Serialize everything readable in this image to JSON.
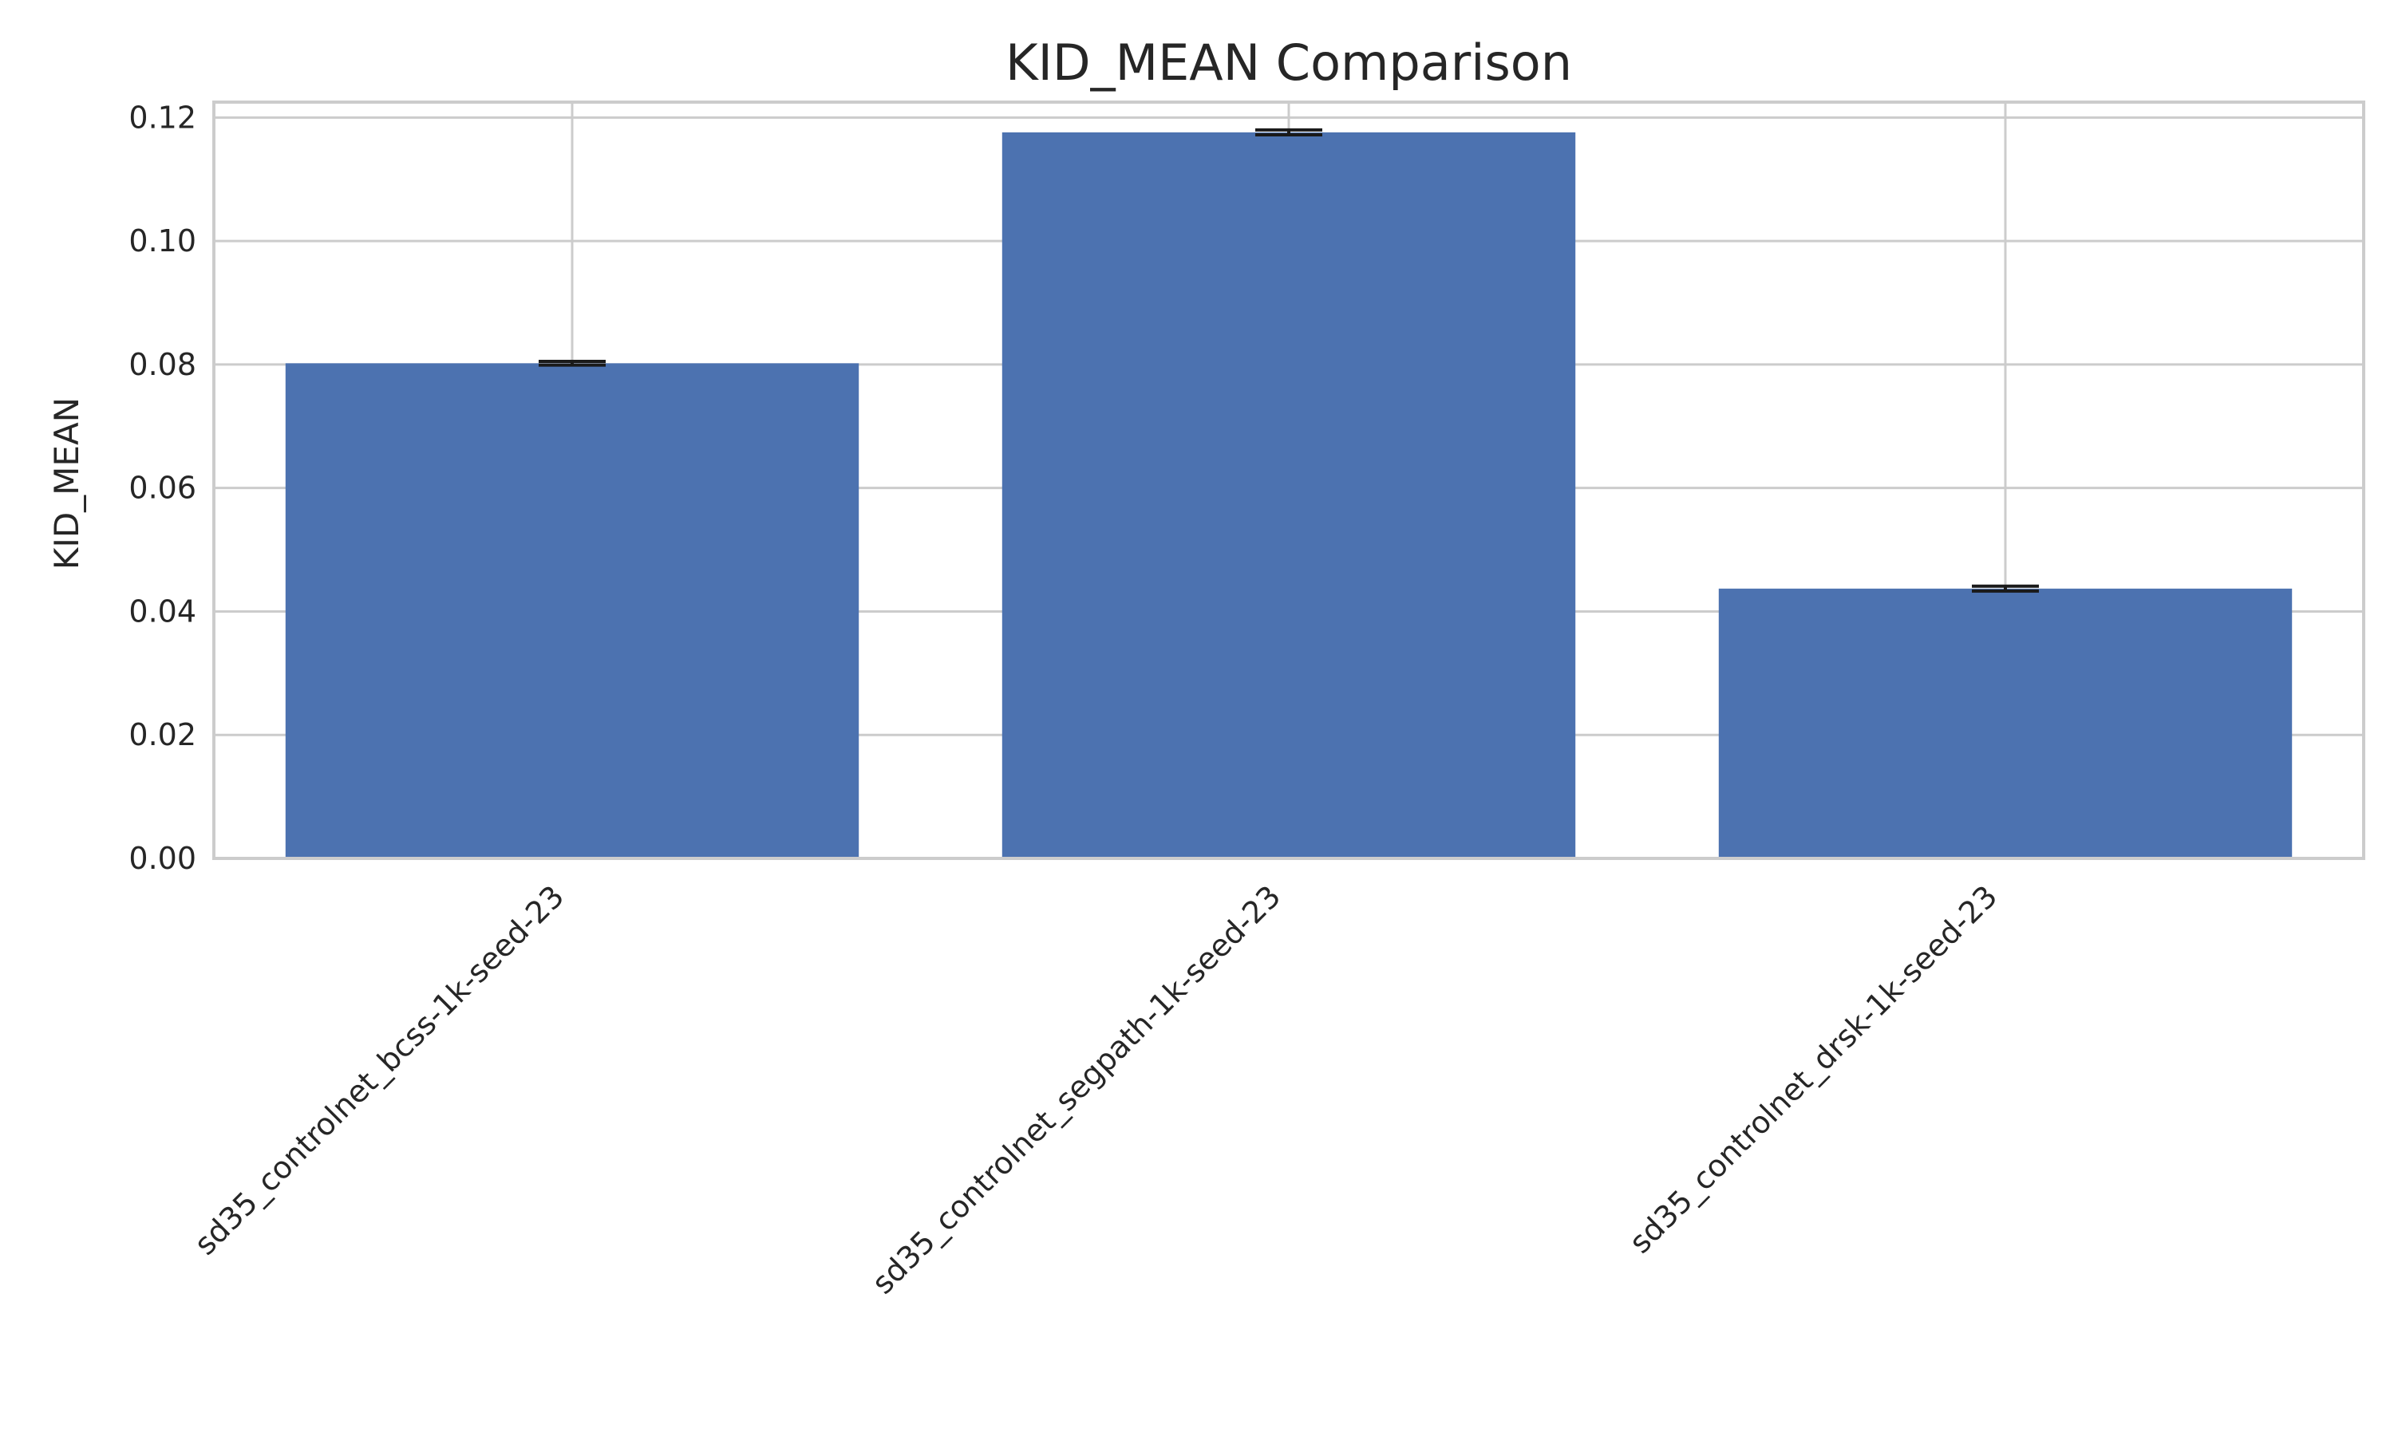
{
  "chart_data": {
    "type": "bar",
    "title": "KID_MEAN Comparison",
    "xlabel": "",
    "ylabel": "KID_MEAN",
    "categories": [
      "sd35_controlnet_bcss-1k-seed-23",
      "sd35_controlnet_segpath-1k-seed-23",
      "sd35_controlnet_drsk-1k-seed-23"
    ],
    "values": [
      0.0802,
      0.1176,
      0.0437
    ],
    "errors": [
      0.0003,
      0.0004,
      0.0004
    ],
    "ylim": [
      0,
      0.1225
    ],
    "yticks": [
      "0.00",
      "0.02",
      "0.04",
      "0.06",
      "0.08",
      "0.10",
      "0.12"
    ],
    "grid": true,
    "legend": "none",
    "colors": {
      "bar": "#4c72b0",
      "grid": "#cccccc",
      "error_bar": "#1a1a1a"
    }
  }
}
